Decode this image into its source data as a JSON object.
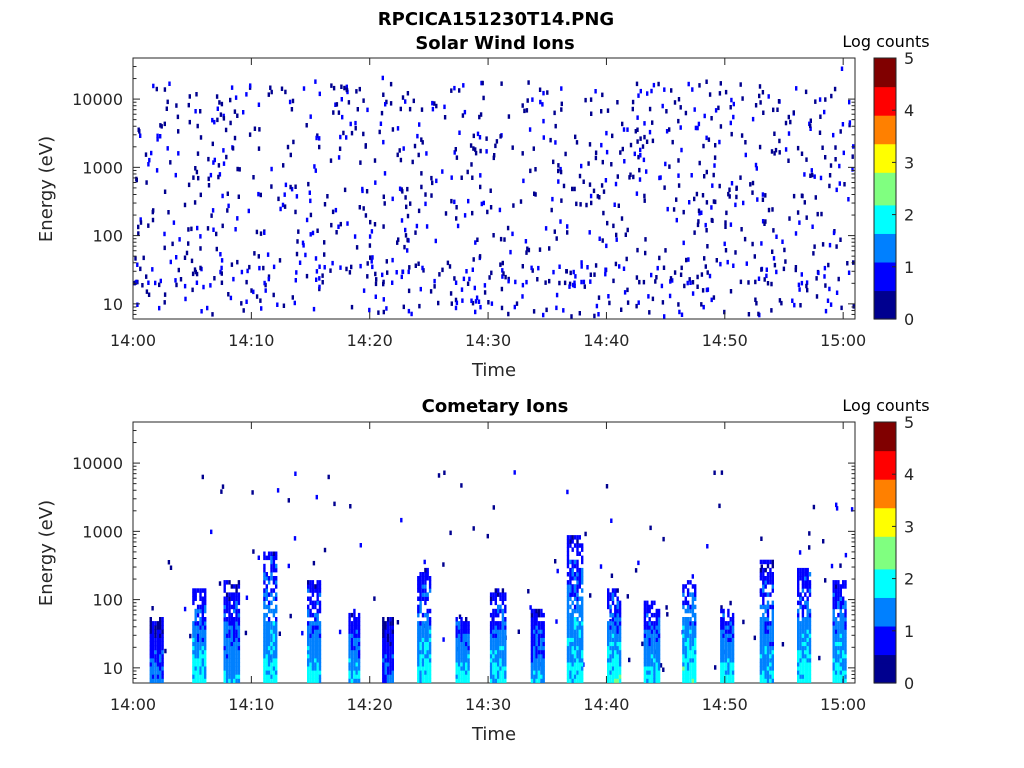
{
  "figure_title": "RPCICA151230T14.PNG",
  "colormap": [
    "#00008f",
    "#0000ff",
    "#0080ff",
    "#00ffff",
    "#80ff80",
    "#ffff00",
    "#ff8000",
    "#ff0000",
    "#800000"
  ],
  "chart_data": [
    {
      "type": "heatmap",
      "title": "Solar Wind Ions",
      "xlabel": "Time",
      "ylabel": "Energy (eV)",
      "x_ticks": [
        "14:00",
        "14:10",
        "14:20",
        "14:30",
        "14:40",
        "14:50",
        "15:00"
      ],
      "x_range_minutes": [
        0,
        61
      ],
      "y_scale": "log",
      "y_range": [
        6,
        40000
      ],
      "y_ticks": [
        10,
        100,
        1000,
        10000
      ],
      "y_tick_labels": [
        "10",
        "100",
        "1000",
        "10000"
      ],
      "colorbar": {
        "label": "Log counts",
        "range": [
          0,
          5
        ],
        "ticks": [
          "0",
          "1",
          "2",
          "3",
          "4",
          "5"
        ]
      },
      "pattern": "sparse",
      "cells": [
        {
          "t": 1.2,
          "e": 22,
          "v": 0.6
        },
        {
          "t": 5.3,
          "e": 22,
          "v": 0.6
        },
        {
          "t": 7.4,
          "e": 30,
          "v": 0.5
        },
        {
          "t": 21.8,
          "e": 22,
          "v": 0.6
        },
        {
          "t": 24.1,
          "e": 10,
          "v": 0.5
        },
        {
          "t": 27.2,
          "e": 22,
          "v": 0.6
        },
        {
          "t": 28.5,
          "e": 12,
          "v": 0.6
        },
        {
          "t": 31.2,
          "e": 30,
          "v": 0.5
        },
        {
          "t": 37.2,
          "e": 22,
          "v": 0.6
        },
        {
          "t": 47.0,
          "e": 22,
          "v": 0.6
        },
        {
          "t": 55.6,
          "e": 12,
          "v": 0.6
        },
        {
          "t": 58.4,
          "e": 20,
          "v": 0.5
        },
        {
          "t": 21.0,
          "e": 22000,
          "v": 0.6
        },
        {
          "t": 9.8,
          "e": 17000,
          "v": 0.6
        },
        {
          "t": 59.8,
          "e": 30000,
          "v": 0.6
        }
      ]
    },
    {
      "type": "heatmap",
      "title": "Cometary Ions",
      "xlabel": "Time",
      "ylabel": "Energy (eV)",
      "x_ticks": [
        "14:00",
        "14:10",
        "14:20",
        "14:30",
        "14:40",
        "14:50",
        "15:00"
      ],
      "x_range_minutes": [
        0,
        61
      ],
      "y_scale": "log",
      "y_range": [
        6,
        40000
      ],
      "y_ticks": [
        10,
        100,
        1000,
        10000
      ],
      "y_tick_labels": [
        "10",
        "100",
        "1000",
        "10000"
      ],
      "colorbar": {
        "label": "Log counts",
        "range": [
          0,
          5
        ],
        "ticks": [
          "0",
          "1",
          "2",
          "3",
          "4",
          "5"
        ]
      },
      "pattern": "bursts",
      "bursts": [
        {
          "t": 2.0,
          "w": 1.2,
          "v": 1.3,
          "top": 60
        },
        {
          "t": 5.6,
          "w": 1.2,
          "v": 1.9,
          "top": 150
        },
        {
          "t": 8.3,
          "w": 1.3,
          "v": 1.6,
          "top": 200
        },
        {
          "t": 11.5,
          "w": 1.0,
          "v": 1.9,
          "top": 550
        },
        {
          "t": 15.2,
          "w": 1.0,
          "v": 1.8,
          "top": 200
        },
        {
          "t": 18.6,
          "w": 0.8,
          "v": 1.7,
          "top": 80
        },
        {
          "t": 21.5,
          "w": 0.9,
          "v": 1.2,
          "top": 60
        },
        {
          "t": 24.6,
          "w": 1.2,
          "v": 1.9,
          "top": 300
        },
        {
          "t": 27.8,
          "w": 1.1,
          "v": 1.9,
          "top": 60
        },
        {
          "t": 30.8,
          "w": 1.3,
          "v": 1.8,
          "top": 150
        },
        {
          "t": 34.1,
          "w": 1.0,
          "v": 1.6,
          "top": 80
        },
        {
          "t": 37.3,
          "w": 1.3,
          "v": 1.9,
          "top": 900
        },
        {
          "t": 40.6,
          "w": 1.1,
          "v": 2.0,
          "top": 150
        },
        {
          "t": 43.8,
          "w": 1.3,
          "v": 1.8,
          "top": 100
        },
        {
          "t": 47.0,
          "w": 1.2,
          "v": 2.1,
          "top": 200
        },
        {
          "t": 50.2,
          "w": 1.2,
          "v": 2.0,
          "top": 80
        },
        {
          "t": 53.5,
          "w": 1.1,
          "v": 1.7,
          "top": 400
        },
        {
          "t": 56.7,
          "w": 1.2,
          "v": 2.0,
          "top": 300
        },
        {
          "t": 59.6,
          "w": 1.0,
          "v": 1.9,
          "top": 200
        }
      ]
    }
  ]
}
